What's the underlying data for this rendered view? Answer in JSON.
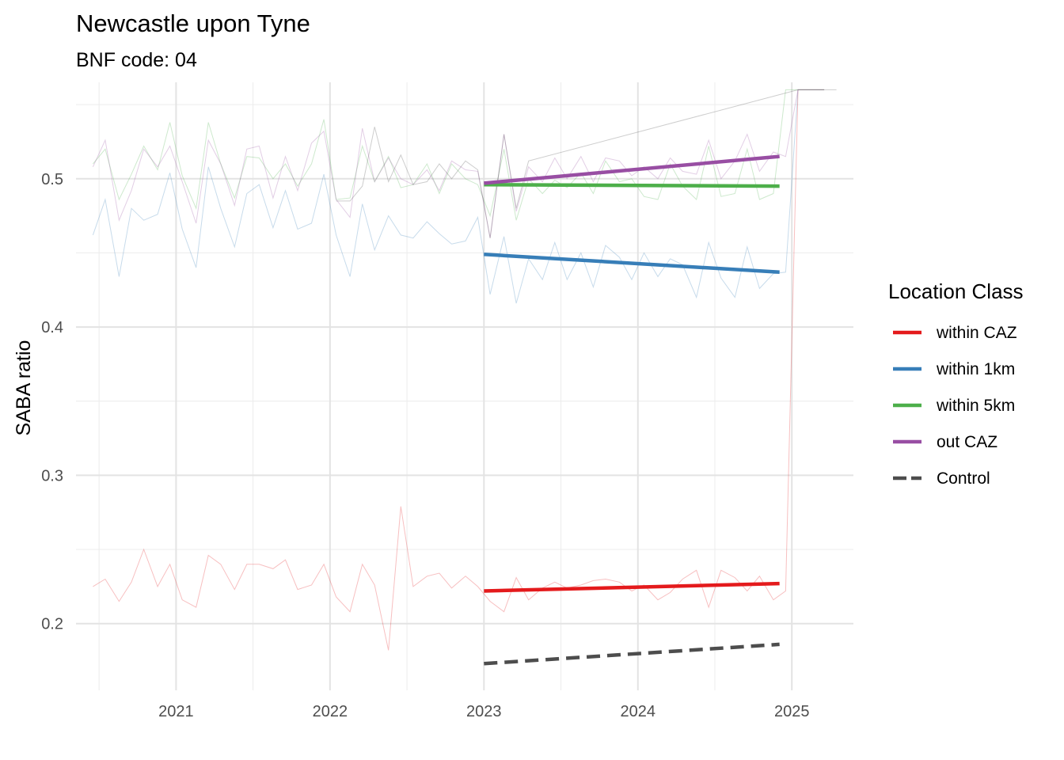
{
  "chart_data": {
    "type": "line",
    "title": "Newcastle upon Tyne",
    "subtitle": "BNF code: 04",
    "xlabel": "",
    "ylabel": "SABA ratio",
    "xlim": [
      2020.35,
      2025.4
    ],
    "ylim": [
      0.155,
      0.565
    ],
    "x_ticks": [
      2021,
      2022,
      2023,
      2024,
      2025
    ],
    "y_ticks": [
      0.2,
      0.3,
      0.4,
      0.5
    ],
    "grid": true,
    "legend": {
      "title": "Location Class",
      "position": "right"
    },
    "series": [
      {
        "name": "within CAZ",
        "color": "#E41A1C",
        "dash": false,
        "trend": {
          "x": [
            2023.0,
            2024.92
          ],
          "y": [
            0.222,
            0.227
          ]
        },
        "raw": {
          "x": [
            2020.46,
            2020.54,
            2020.63,
            2020.71,
            2020.79,
            2020.88,
            2020.96,
            2021.04,
            2021.13,
            2021.21,
            2021.29,
            2021.38,
            2021.46,
            2021.54,
            2021.63,
            2021.71,
            2021.79,
            2021.88,
            2021.96,
            2022.04,
            2022.13,
            2022.21,
            2022.29,
            2022.38,
            2022.46,
            2022.54,
            2022.63,
            2022.71,
            2022.79,
            2022.88,
            2022.96,
            2023.04,
            2023.13,
            2023.21,
            2023.29,
            2023.38,
            2023.46,
            2023.54,
            2023.63,
            2023.71,
            2023.79,
            2023.88,
            2023.96,
            2024.04,
            2024.13,
            2024.21,
            2024.29,
            2024.38,
            2024.46,
            2024.54,
            2024.63,
            2024.71,
            2024.79,
            2024.88,
            2024.96,
            2025.04,
            2025.21
          ],
          "y": [
            0.225,
            0.23,
            0.215,
            0.228,
            0.25,
            0.225,
            0.24,
            0.216,
            0.211,
            0.246,
            0.24,
            0.223,
            0.24,
            0.24,
            0.237,
            0.243,
            0.223,
            0.226,
            0.24,
            0.218,
            0.208,
            0.24,
            0.226,
            0.182,
            0.279,
            0.225,
            0.232,
            0.234,
            0.224,
            0.232,
            0.225,
            0.215,
            0.208,
            0.231,
            0.216,
            0.224,
            0.228,
            0.224,
            0.226,
            0.229,
            0.23,
            0.228,
            0.222,
            0.226,
            0.216,
            0.221,
            0.23,
            0.236,
            0.211,
            0.236,
            0.231,
            0.222,
            0.232,
            0.216,
            0.222,
            0.56,
            0.56
          ]
        }
      },
      {
        "name": "within 1km",
        "color": "#377EB8",
        "dash": false,
        "trend": {
          "x": [
            2023.0,
            2024.92
          ],
          "y": [
            0.449,
            0.437
          ]
        },
        "raw": {
          "x": [
            2020.46,
            2020.54,
            2020.63,
            2020.71,
            2020.79,
            2020.88,
            2020.96,
            2021.04,
            2021.13,
            2021.21,
            2021.29,
            2021.38,
            2021.46,
            2021.54,
            2021.63,
            2021.71,
            2021.79,
            2021.88,
            2021.96,
            2022.04,
            2022.13,
            2022.21,
            2022.29,
            2022.38,
            2022.46,
            2022.54,
            2022.63,
            2022.71,
            2022.79,
            2022.88,
            2022.96,
            2023.04,
            2023.13,
            2023.21,
            2023.29,
            2023.38,
            2023.46,
            2023.54,
            2023.63,
            2023.71,
            2023.79,
            2023.88,
            2023.96,
            2024.04,
            2024.13,
            2024.21,
            2024.29,
            2024.38,
            2024.46,
            2024.54,
            2024.63,
            2024.71,
            2024.79,
            2024.88,
            2024.96,
            2025.04,
            2025.21
          ],
          "y": [
            0.462,
            0.486,
            0.434,
            0.48,
            0.472,
            0.476,
            0.504,
            0.466,
            0.44,
            0.508,
            0.48,
            0.454,
            0.49,
            0.496,
            0.467,
            0.492,
            0.466,
            0.47,
            0.503,
            0.462,
            0.434,
            0.483,
            0.452,
            0.475,
            0.462,
            0.46,
            0.471,
            0.463,
            0.456,
            0.458,
            0.474,
            0.422,
            0.461,
            0.416,
            0.446,
            0.432,
            0.457,
            0.432,
            0.45,
            0.427,
            0.455,
            0.447,
            0.432,
            0.45,
            0.434,
            0.446,
            0.442,
            0.42,
            0.457,
            0.433,
            0.42,
            0.454,
            0.426,
            0.436,
            0.437,
            0.56,
            0.56
          ]
        }
      },
      {
        "name": "within 5km",
        "color": "#4DAF4A",
        "dash": false,
        "trend": {
          "x": [
            2023.0,
            2024.92
          ],
          "y": [
            0.496,
            0.495
          ]
        },
        "raw": {
          "x": [
            2020.46,
            2020.54,
            2020.63,
            2020.71,
            2020.79,
            2020.88,
            2020.96,
            2021.04,
            2021.13,
            2021.21,
            2021.29,
            2021.38,
            2021.46,
            2021.54,
            2021.63,
            2021.71,
            2021.79,
            2021.88,
            2021.96,
            2022.04,
            2022.13,
            2022.21,
            2022.29,
            2022.38,
            2022.46,
            2022.54,
            2022.63,
            2022.71,
            2022.79,
            2022.88,
            2022.96,
            2023.04,
            2023.13,
            2023.21,
            2023.29,
            2023.38,
            2023.46,
            2023.54,
            2023.63,
            2023.71,
            2023.79,
            2023.88,
            2023.96,
            2024.04,
            2024.13,
            2024.21,
            2024.29,
            2024.38,
            2024.46,
            2024.54,
            2024.63,
            2024.71,
            2024.79,
            2024.88,
            2024.96,
            2025.04,
            2025.21
          ],
          "y": [
            0.51,
            0.52,
            0.486,
            0.503,
            0.522,
            0.506,
            0.538,
            0.502,
            0.48,
            0.538,
            0.51,
            0.487,
            0.515,
            0.514,
            0.5,
            0.51,
            0.495,
            0.51,
            0.54,
            0.486,
            0.487,
            0.522,
            0.498,
            0.515,
            0.494,
            0.496,
            0.51,
            0.49,
            0.51,
            0.5,
            0.496,
            0.475,
            0.52,
            0.472,
            0.5,
            0.49,
            0.499,
            0.494,
            0.504,
            0.49,
            0.512,
            0.498,
            0.5,
            0.488,
            0.486,
            0.51,
            0.495,
            0.486,
            0.522,
            0.488,
            0.49,
            0.52,
            0.486,
            0.49,
            0.56,
            0.56,
            0.56
          ]
        }
      },
      {
        "name": "out CAZ",
        "color": "#984EA3",
        "dash": false,
        "trend": {
          "x": [
            2023.0,
            2024.92
          ],
          "y": [
            0.497,
            0.515
          ]
        },
        "raw": {
          "x": [
            2020.46,
            2020.54,
            2020.63,
            2020.71,
            2020.79,
            2020.88,
            2020.96,
            2021.04,
            2021.13,
            2021.21,
            2021.29,
            2021.38,
            2021.46,
            2021.54,
            2021.63,
            2021.71,
            2021.79,
            2021.88,
            2021.96,
            2022.04,
            2022.13,
            2022.21,
            2022.29,
            2022.38,
            2022.46,
            2022.54,
            2022.63,
            2022.71,
            2022.79,
            2022.88,
            2022.96,
            2023.04,
            2023.13,
            2023.21,
            2023.29,
            2023.38,
            2023.46,
            2023.54,
            2023.63,
            2023.71,
            2023.79,
            2023.88,
            2023.96,
            2024.04,
            2024.13,
            2024.21,
            2024.29,
            2024.38,
            2024.46,
            2024.54,
            2024.63,
            2024.71,
            2024.79,
            2024.88,
            2024.96,
            2025.04,
            2025.21
          ],
          "y": [
            0.508,
            0.526,
            0.472,
            0.492,
            0.52,
            0.508,
            0.522,
            0.498,
            0.47,
            0.526,
            0.51,
            0.482,
            0.52,
            0.522,
            0.487,
            0.515,
            0.492,
            0.524,
            0.532,
            0.486,
            0.474,
            0.534,
            0.498,
            0.514,
            0.5,
            0.496,
            0.506,
            0.492,
            0.512,
            0.506,
            0.505,
            0.46,
            0.53,
            0.478,
            0.508,
            0.498,
            0.514,
            0.5,
            0.515,
            0.498,
            0.514,
            0.512,
            0.502,
            0.508,
            0.5,
            0.514,
            0.505,
            0.503,
            0.526,
            0.5,
            0.512,
            0.53,
            0.505,
            0.518,
            0.515,
            0.56,
            0.56
          ]
        }
      },
      {
        "name": "Control",
        "color": "#4D4D4D",
        "dash": true,
        "trend": {
          "x": [
            2023.0,
            2024.92
          ],
          "y": [
            0.173,
            0.186
          ]
        },
        "raw": {
          "x": [
            2022.04,
            2022.13,
            2022.21,
            2022.29,
            2022.38,
            2022.46,
            2022.54,
            2022.63,
            2022.71,
            2022.79,
            2022.88,
            2022.96,
            2023.04,
            2023.13,
            2023.21,
            2023.29,
            2025.04,
            2025.13,
            2025.21,
            2025.29
          ],
          "y": [
            0.485,
            0.485,
            0.495,
            0.535,
            0.498,
            0.516,
            0.496,
            0.498,
            0.51,
            0.5,
            0.512,
            0.506,
            0.46,
            0.53,
            0.48,
            0.512,
            0.56,
            0.56,
            0.56,
            0.56
          ]
        }
      }
    ]
  }
}
